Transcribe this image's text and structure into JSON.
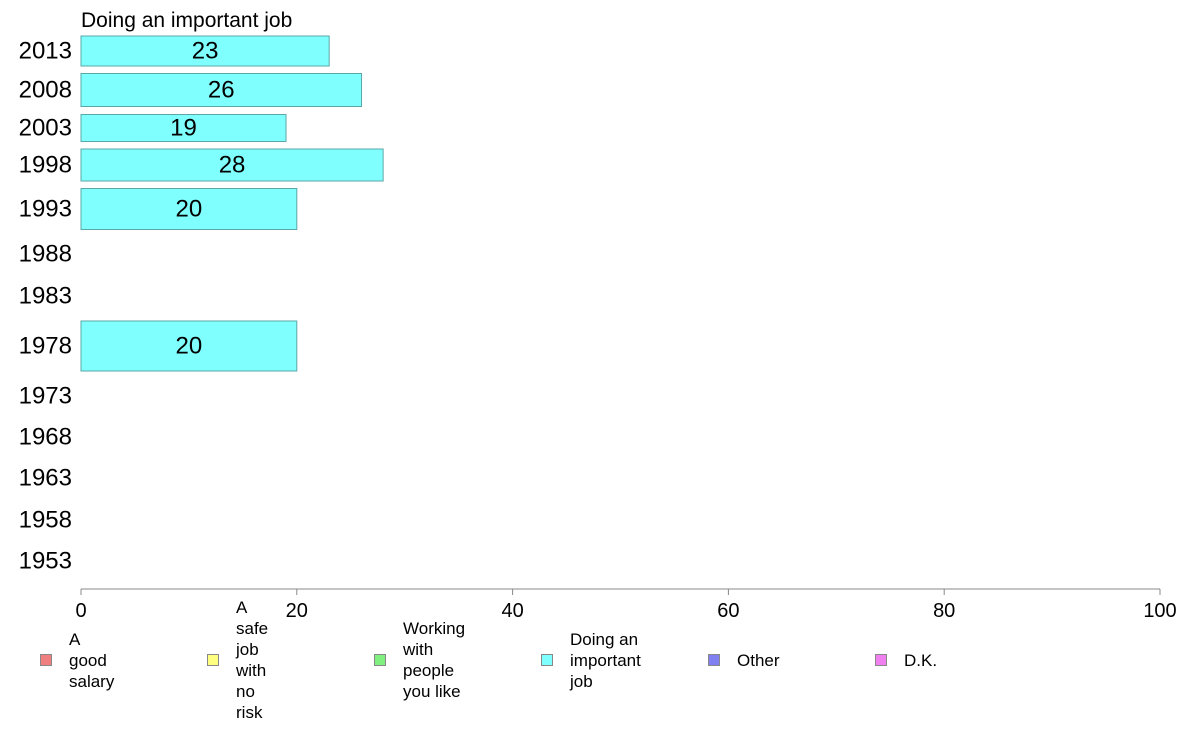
{
  "chart_data": {
    "type": "bar",
    "orientation": "horizontal",
    "title": "Doing an important job",
    "categories": [
      "2013",
      "2008",
      "2003",
      "1998",
      "1993",
      "1988",
      "1983",
      "1978",
      "1973",
      "1968",
      "1963",
      "1958",
      "1953"
    ],
    "values": [
      23,
      26,
      19,
      28,
      20,
      null,
      null,
      20,
      null,
      null,
      null,
      null,
      null
    ],
    "data_labels": [
      "23",
      "26",
      "19",
      "28",
      "20",
      "",
      "",
      "20",
      "",
      "",
      "",
      "",
      ""
    ],
    "xlim": [
      0,
      100
    ],
    "x_ticks": [
      0,
      20,
      40,
      60,
      80,
      100
    ],
    "bar_color": "#80ffff",
    "bar_border_color": "#5aa7a7",
    "axis_color": "#888888",
    "grid": false,
    "legend_position": "bottom",
    "legend": [
      {
        "label": "A good salary",
        "color": "#f08080"
      },
      {
        "label": "A safe job\nwith no risk",
        "color": "#ffff80"
      },
      {
        "label": "Working with\npeople you like",
        "color": "#80f080"
      },
      {
        "label": "Doing an\nimportant job",
        "color": "#80ffff"
      },
      {
        "label": "Other",
        "color": "#8080f0"
      },
      {
        "label": "D.K.",
        "color": "#f080f0"
      }
    ]
  }
}
